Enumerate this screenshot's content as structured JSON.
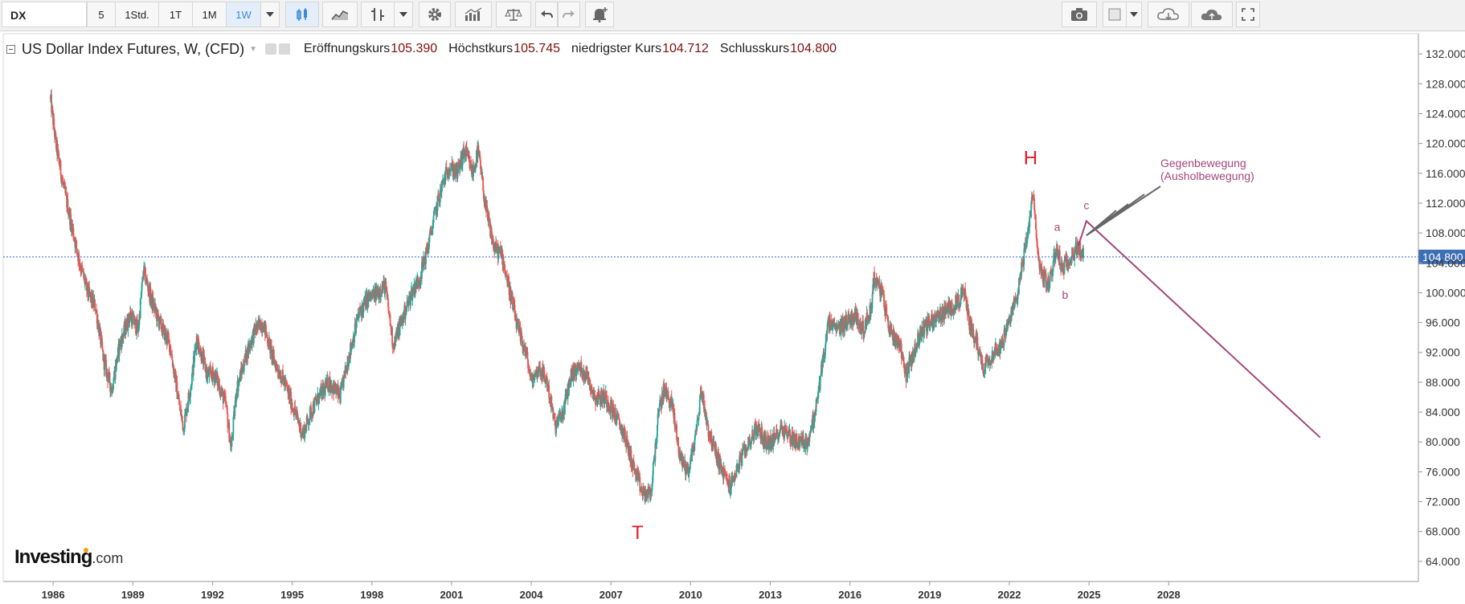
{
  "toolbar": {
    "symbol": "DX",
    "intervals": [
      "5",
      "1Std.",
      "1T",
      "1M",
      "1W"
    ],
    "active_interval": "1W"
  },
  "legend": {
    "title": "US Dollar Index Futures, W, (CFD)",
    "open_label": "Eröffnungskurs",
    "open_value": "105.390",
    "high_label": "Höchstkurs",
    "high_value": "105.745",
    "low_label": "niedrigster Kurs",
    "low_value": "104.712",
    "close_label": "Schlusskurs",
    "close_value": "104.800"
  },
  "branding": {
    "name": "Investing",
    "suffix": ".com"
  },
  "colors": {
    "up": "#26a69a",
    "down": "#ef5350",
    "annotation": "#a3477a",
    "label_red": "#e51c23",
    "price_line": "#3366cc"
  },
  "chart_data": {
    "type": "candlestick",
    "interval": "weekly",
    "current_price": 104.8,
    "current_price_label": "104.800",
    "x_ticks": [
      "1986",
      "1989",
      "1992",
      "1995",
      "1998",
      "2001",
      "2004",
      "2007",
      "2010",
      "2013",
      "2016",
      "2019",
      "2022",
      "2025",
      "2028"
    ],
    "y_ticks": [
      "64.000",
      "68.000",
      "72.000",
      "76.000",
      "80.000",
      "84.000",
      "88.000",
      "92.000",
      "96.000",
      "100.000",
      "104.000",
      "108.000",
      "112.000",
      "116.000",
      "120.000",
      "124.000",
      "128.000",
      "132.000"
    ],
    "ylim": [
      61.3,
      134.7
    ],
    "xlim": [
      1984.12,
      2037.4
    ],
    "series": {
      "close_path": [
        [
          1985.9,
          126
        ],
        [
          1986.1,
          120
        ],
        [
          1986.4,
          114
        ],
        [
          1986.7,
          109
        ],
        [
          1987.0,
          104
        ],
        [
          1987.3,
          100
        ],
        [
          1987.6,
          98
        ],
        [
          1987.9,
          91
        ],
        [
          1988.2,
          87
        ],
        [
          1988.5,
          93
        ],
        [
          1988.9,
          97
        ],
        [
          1989.2,
          95
        ],
        [
          1989.4,
          103
        ],
        [
          1989.7,
          99
        ],
        [
          1990.0,
          96
        ],
        [
          1990.4,
          93
        ],
        [
          1990.7,
          86
        ],
        [
          1990.9,
          82
        ],
        [
          1991.2,
          88
        ],
        [
          1991.4,
          94
        ],
        [
          1991.8,
          89
        ],
        [
          1992.1,
          89
        ],
        [
          1992.5,
          85
        ],
        [
          1992.7,
          79
        ],
        [
          1992.9,
          87
        ],
        [
          1993.3,
          92
        ],
        [
          1993.6,
          95
        ],
        [
          1993.9,
          96
        ],
        [
          1994.3,
          91
        ],
        [
          1994.7,
          88
        ],
        [
          1995.1,
          84
        ],
        [
          1995.4,
          81
        ],
        [
          1995.7,
          84
        ],
        [
          1996.0,
          86
        ],
        [
          1996.4,
          88
        ],
        [
          1996.8,
          86
        ],
        [
          1997.1,
          91
        ],
        [
          1997.5,
          97
        ],
        [
          1997.8,
          99
        ],
        [
          1998.2,
          100
        ],
        [
          1998.5,
          101
        ],
        [
          1998.8,
          93
        ],
        [
          1999.1,
          96
        ],
        [
          1999.5,
          100
        ],
        [
          1999.8,
          102
        ],
        [
          2000.1,
          106
        ],
        [
          2000.4,
          111
        ],
        [
          2000.7,
          115
        ],
        [
          2000.9,
          117
        ],
        [
          2001.2,
          116
        ],
        [
          2001.5,
          119
        ],
        [
          2001.8,
          116
        ],
        [
          2002.0,
          119
        ],
        [
          2002.3,
          111
        ],
        [
          2002.6,
          106
        ],
        [
          2002.9,
          105
        ],
        [
          2003.2,
          100
        ],
        [
          2003.5,
          95
        ],
        [
          2003.8,
          92
        ],
        [
          2004.0,
          88
        ],
        [
          2004.3,
          90
        ],
        [
          2004.6,
          88
        ],
        [
          2004.9,
          82
        ],
        [
          2005.2,
          84
        ],
        [
          2005.5,
          89
        ],
        [
          2005.8,
          90
        ],
        [
          2006.1,
          89
        ],
        [
          2006.4,
          86
        ],
        [
          2006.8,
          86
        ],
        [
          2007.1,
          84
        ],
        [
          2007.5,
          81
        ],
        [
          2007.9,
          76
        ],
        [
          2008.2,
          73
        ],
        [
          2008.5,
          73
        ],
        [
          2008.8,
          84
        ],
        [
          2009.0,
          87
        ],
        [
          2009.3,
          85
        ],
        [
          2009.6,
          78
        ],
        [
          2009.9,
          76
        ],
        [
          2010.2,
          81
        ],
        [
          2010.4,
          87
        ],
        [
          2010.7,
          81
        ],
        [
          2010.9,
          79
        ],
        [
          2011.2,
          76
        ],
        [
          2011.5,
          74
        ],
        [
          2011.8,
          77
        ],
        [
          2012.2,
          80
        ],
        [
          2012.5,
          82
        ],
        [
          2012.8,
          80
        ],
        [
          2013.1,
          80
        ],
        [
          2013.4,
          82
        ],
        [
          2013.7,
          81
        ],
        [
          2014.0,
          80
        ],
        [
          2014.4,
          80
        ],
        [
          2014.7,
          84
        ],
        [
          2014.9,
          89
        ],
        [
          2015.2,
          96
        ],
        [
          2015.5,
          95
        ],
        [
          2015.8,
          96
        ],
        [
          2016.2,
          97
        ],
        [
          2016.5,
          95
        ],
        [
          2016.8,
          98
        ],
        [
          2016.9,
          102
        ],
        [
          2017.2,
          100
        ],
        [
          2017.5,
          95
        ],
        [
          2017.9,
          93
        ],
        [
          2018.1,
          89
        ],
        [
          2018.4,
          92
        ],
        [
          2018.7,
          95
        ],
        [
          2019.0,
          96
        ],
        [
          2019.4,
          97
        ],
        [
          2019.8,
          98
        ],
        [
          2020.1,
          99
        ],
        [
          2020.3,
          100
        ],
        [
          2020.5,
          96
        ],
        [
          2020.8,
          93
        ],
        [
          2021.0,
          90
        ],
        [
          2021.4,
          92
        ],
        [
          2021.7,
          93
        ],
        [
          2022.0,
          96
        ],
        [
          2022.3,
          100
        ],
        [
          2022.6,
          106
        ],
        [
          2022.8,
          111
        ],
        [
          2022.9,
          113
        ],
        [
          2023.1,
          104
        ],
        [
          2023.3,
          102
        ],
        [
          2023.5,
          101
        ],
        [
          2023.7,
          105
        ],
        [
          2023.8,
          106
        ],
        [
          2024.0,
          103
        ],
        [
          2024.3,
          105
        ],
        [
          2024.6,
          106
        ],
        [
          2024.8,
          105
        ]
      ]
    },
    "annotations": {
      "labels": [
        {
          "text": "H",
          "x": 2022.8,
          "y": 117.2,
          "role": "head"
        },
        {
          "text": "T",
          "x": 2008.0,
          "y": 67.0,
          "role": "trough"
        },
        {
          "text": "a",
          "x": 2023.8,
          "y": 108.3,
          "role": "wave"
        },
        {
          "text": "b",
          "x": 2024.1,
          "y": 99.2,
          "role": "wave"
        },
        {
          "text": "c",
          "x": 2024.9,
          "y": 111.2,
          "role": "wave"
        }
      ],
      "note_line1": "Gegenbewegung",
      "note_line2": "(Ausholbewegung)",
      "projection": [
        [
          2024.6,
          106.3
        ],
        [
          2024.9,
          109.6
        ],
        [
          2033.7,
          80.6
        ]
      ]
    }
  }
}
